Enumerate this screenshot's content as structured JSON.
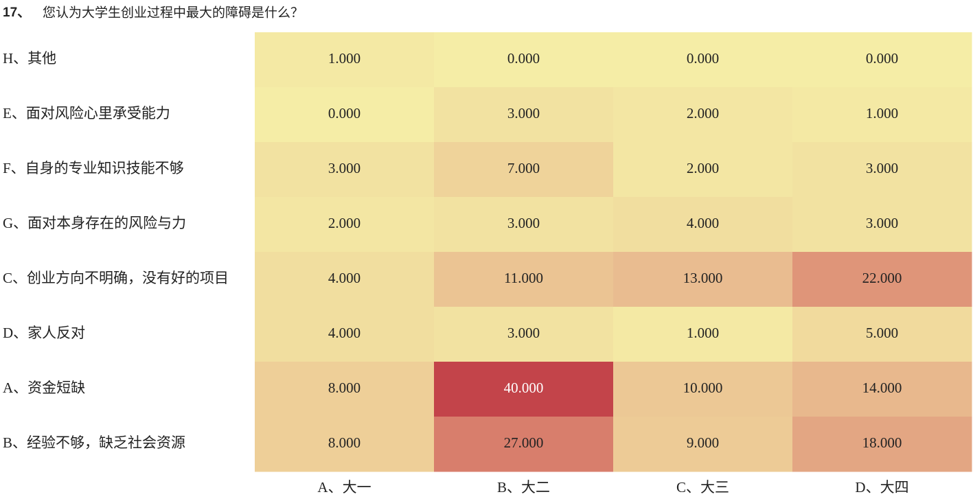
{
  "chart_data": {
    "type": "heatmap",
    "question_number": "17、",
    "title": "您认为大学生创业过程中最大的障碍是什么？",
    "rows": [
      "H、其他",
      "E、面对风险心里承受能力",
      "F、自身的专业知识技能不够",
      "G、面对本身存在的风险与力",
      "C、创业方向不明确，没有好的项目",
      "D、家人反对",
      "A、资金短缺",
      "B、经验不够，缺乏社会资源"
    ],
    "columns": [
      "A、大一",
      "B、大二",
      "C、大三",
      "D、大四"
    ],
    "values": [
      [
        1,
        0,
        0,
        0
      ],
      [
        0,
        3,
        2,
        1
      ],
      [
        3,
        7,
        2,
        3
      ],
      [
        2,
        3,
        4,
        3
      ],
      [
        4,
        11,
        13,
        22
      ],
      [
        4,
        3,
        1,
        5
      ],
      [
        8,
        40,
        10,
        14
      ],
      [
        8,
        27,
        9,
        18
      ]
    ],
    "value_labels": [
      [
        "1.000",
        "0.000",
        "0.000",
        "0.000"
      ],
      [
        "0.000",
        "3.000",
        "2.000",
        "1.000"
      ],
      [
        "3.000",
        "7.000",
        "2.000",
        "3.000"
      ],
      [
        "2.000",
        "3.000",
        "4.000",
        "3.000"
      ],
      [
        "4.000",
        "11.000",
        "13.000",
        "22.000"
      ],
      [
        "4.000",
        "3.000",
        "1.000",
        "5.000"
      ],
      [
        "8.000",
        "40.000",
        "10.000",
        "14.000"
      ],
      [
        "8.000",
        "27.000",
        "9.000",
        "18.000"
      ]
    ],
    "colors": [
      "#f5eda6",
      "#e9bb8f",
      "#d9806d",
      "#c3444a"
    ]
  }
}
